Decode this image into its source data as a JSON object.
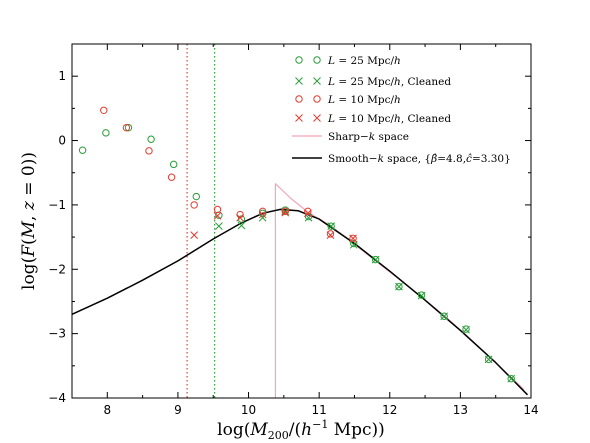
{
  "chart_data": {
    "type": "scatter",
    "xlabel": "log(M₂₀₀/(h⁻¹ Mpc))",
    "ylabel": "log(F(M, z = 0))",
    "xlim": [
      7.5,
      14
    ],
    "ylim": [
      -4,
      1.5
    ],
    "x_ticks": [
      "8",
      "9",
      "10",
      "11",
      "12",
      "13",
      "14"
    ],
    "y_ticks": [
      "−4",
      "−3",
      "−2",
      "−1",
      "0",
      "1"
    ],
    "grid": false,
    "legend_position": "top-right",
    "vlines": [
      {
        "x": 9.13,
        "color": "#e03c31",
        "style": "dotted"
      },
      {
        "x": 9.52,
        "color": "#2a9d3a",
        "style": "dotted"
      }
    ],
    "series": [
      {
        "name": "L = 25 Mpc/h",
        "marker": "circle",
        "color": "#2a9d3a",
        "points": [
          [
            7.65,
            -0.15
          ],
          [
            7.98,
            0.12
          ],
          [
            8.3,
            0.2
          ],
          [
            8.62,
            0.02
          ],
          [
            8.94,
            -0.37
          ],
          [
            9.26,
            -0.87
          ],
          [
            9.58,
            -1.16
          ],
          [
            9.9,
            -1.22
          ],
          [
            10.2,
            -1.13
          ],
          [
            10.52,
            -1.08
          ],
          [
            10.85,
            -1.18
          ],
          [
            11.17,
            -1.33
          ],
          [
            11.49,
            -1.6
          ],
          [
            11.8,
            -1.85
          ],
          [
            12.13,
            -2.27
          ],
          [
            12.45,
            -2.4
          ],
          [
            12.77,
            -2.73
          ],
          [
            13.08,
            -2.93
          ],
          [
            13.4,
            -3.4
          ],
          [
            13.72,
            -3.7
          ]
        ]
      },
      {
        "name": "L = 25 Mpc/h, Cleaned",
        "marker": "x",
        "color": "#2a9d3a",
        "points": [
          [
            9.58,
            -1.33
          ],
          [
            9.9,
            -1.32
          ],
          [
            10.2,
            -1.2
          ],
          [
            10.52,
            -1.1
          ],
          [
            10.85,
            -1.2
          ],
          [
            11.17,
            -1.33
          ],
          [
            11.49,
            -1.62
          ],
          [
            11.8,
            -1.85
          ],
          [
            12.13,
            -2.27
          ],
          [
            12.45,
            -2.41
          ],
          [
            12.77,
            -2.73
          ],
          [
            13.08,
            -2.94
          ],
          [
            13.4,
            -3.4
          ],
          [
            13.72,
            -3.7
          ]
        ]
      },
      {
        "name": "L = 10 Mpc/h",
        "marker": "circle",
        "color": "#e03c31",
        "points": [
          [
            7.95,
            0.47
          ],
          [
            8.27,
            0.2
          ],
          [
            8.59,
            -0.16
          ],
          [
            8.91,
            -0.57
          ],
          [
            9.23,
            -1.0
          ],
          [
            9.56,
            -1.07
          ],
          [
            9.88,
            -1.15
          ],
          [
            10.2,
            -1.1
          ],
          [
            10.52,
            -1.1
          ],
          [
            10.84,
            -1.1
          ],
          [
            11.16,
            -1.45
          ],
          [
            11.48,
            -1.52
          ]
        ]
      },
      {
        "name": "L = 10 Mpc/h, Cleaned",
        "marker": "x",
        "color": "#e03c31",
        "points": [
          [
            9.23,
            -1.47
          ],
          [
            9.56,
            -1.17
          ],
          [
            9.88,
            -1.2
          ],
          [
            10.2,
            -1.15
          ],
          [
            10.52,
            -1.12
          ],
          [
            10.84,
            -1.13
          ],
          [
            11.16,
            -1.47
          ],
          [
            11.48,
            -1.52
          ]
        ]
      },
      {
        "name": "Sharp−k space",
        "line": "solid",
        "color": "#f4a6b8",
        "points": [
          [
            10.38,
            -4.0
          ],
          [
            10.38,
            -0.67
          ],
          [
            10.6,
            -0.9
          ],
          [
            10.85,
            -1.12
          ],
          [
            11.17,
            -1.33
          ],
          [
            11.49,
            -1.6
          ],
          [
            11.8,
            -1.87
          ],
          [
            12.13,
            -2.15
          ],
          [
            12.45,
            -2.43
          ],
          [
            12.77,
            -2.72
          ],
          [
            13.08,
            -3.02
          ],
          [
            13.4,
            -3.35
          ],
          [
            13.72,
            -3.68
          ],
          [
            13.9,
            -3.87
          ]
        ]
      },
      {
        "name": "Smooth−k space, {β̂=4.8, ĉ=3.30}",
        "line": "solid",
        "color": "#000000",
        "points": [
          [
            7.5,
            -2.7
          ],
          [
            8.0,
            -2.45
          ],
          [
            8.5,
            -2.17
          ],
          [
            9.0,
            -1.87
          ],
          [
            9.5,
            -1.53
          ],
          [
            9.9,
            -1.28
          ],
          [
            10.2,
            -1.13
          ],
          [
            10.45,
            -1.07
          ],
          [
            10.7,
            -1.09
          ],
          [
            11.0,
            -1.22
          ],
          [
            11.5,
            -1.6
          ],
          [
            12.0,
            -2.03
          ],
          [
            12.5,
            -2.48
          ],
          [
            13.0,
            -2.95
          ],
          [
            13.5,
            -3.45
          ],
          [
            13.95,
            -3.95
          ]
        ]
      }
    ]
  }
}
